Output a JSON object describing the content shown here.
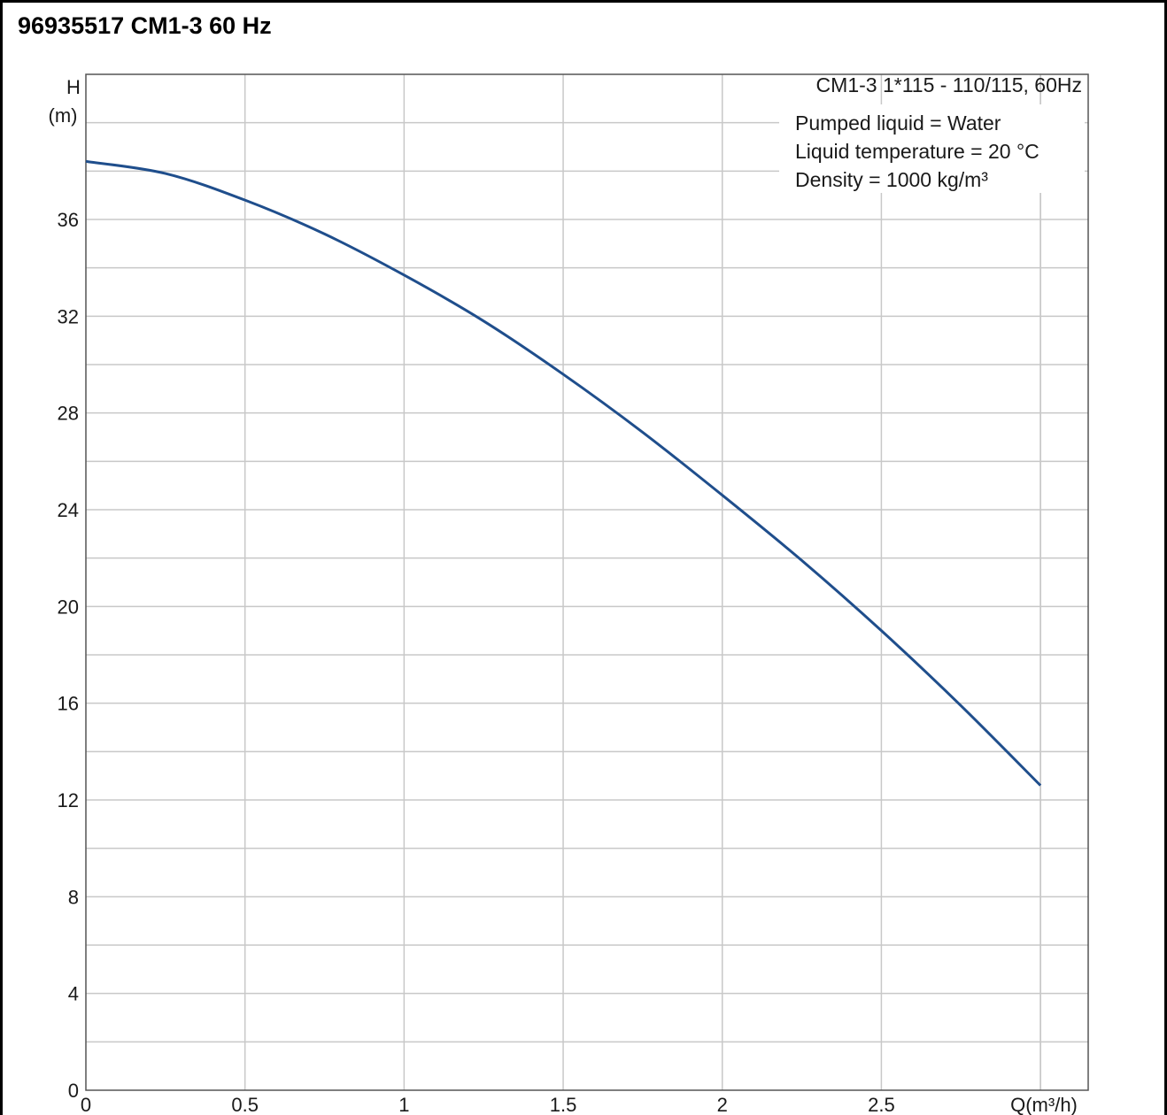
{
  "title": "96935517 CM1-3 60 Hz",
  "chart_data": {
    "type": "line",
    "model_label": "CM1-3  1*115 - 110/115, 60Hz",
    "notes": [
      "Pumped liquid = Water",
      "Liquid temperature = 20 °C",
      "Density = 1000 kg/m³"
    ],
    "ylabel_top": "H",
    "ylabel_unit": "(m)",
    "xlabel": "Q(m³/h)",
    "xlim": [
      0,
      3.15
    ],
    "ylim": [
      0,
      42
    ],
    "xticks": [
      0,
      0.5,
      1,
      1.5,
      2,
      2.5
    ],
    "xtick_labels": [
      "0",
      "0.5",
      "1",
      "1.5",
      "2",
      "2.5"
    ],
    "yticks": [
      0,
      4,
      8,
      12,
      16,
      20,
      24,
      28,
      32,
      36
    ],
    "ytick_labels": [
      "0",
      "4",
      "8",
      "12",
      "16",
      "20",
      "24",
      "28",
      "32",
      "36"
    ],
    "grid": true,
    "line_color": "#1f4e8c",
    "series": [
      {
        "x": [
          0,
          0.25,
          0.5,
          0.75,
          1.0,
          1.25,
          1.5,
          1.75,
          2.0,
          2.25,
          2.5,
          2.75,
          3.0
        ],
        "y": [
          38.4,
          37.9,
          36.8,
          35.4,
          33.7,
          31.8,
          29.6,
          27.2,
          24.6,
          21.9,
          19.0,
          15.9,
          12.6
        ]
      }
    ]
  }
}
